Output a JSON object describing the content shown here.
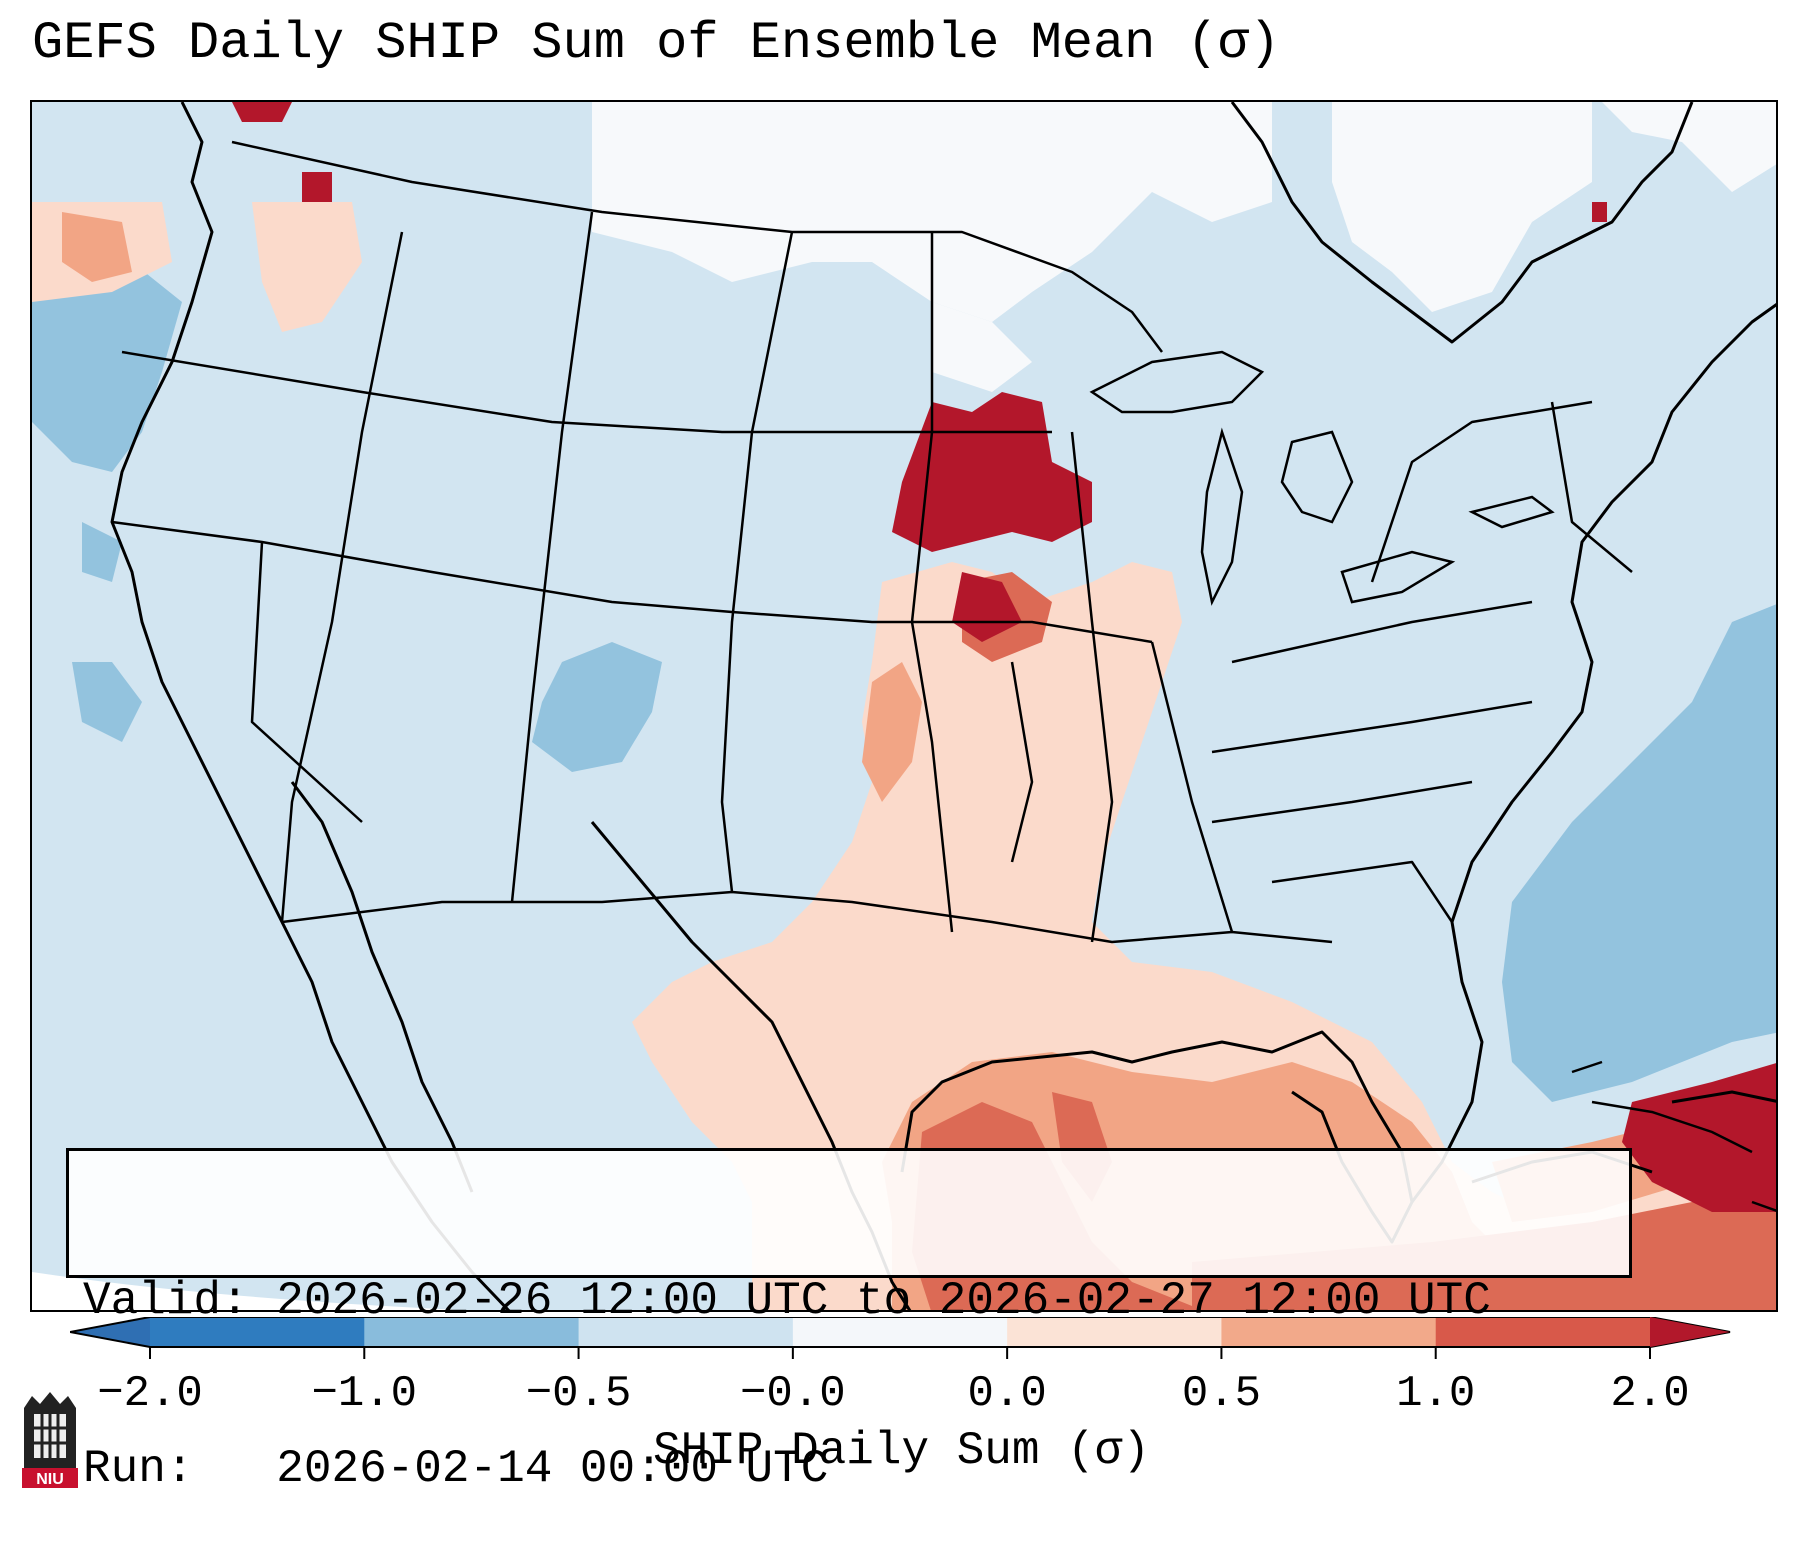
{
  "title": "GEFS Daily SHIP Sum of Ensemble Mean (σ)",
  "info": {
    "valid_label": "Valid:",
    "valid_value": "2026-02-26 12:00 UTC to 2026-02-27 12:00 UTC",
    "run_label": "Run:",
    "run_value": "2026-02-14 00:00 UTC"
  },
  "colorbar": {
    "label": "SHIP Daily Sum (σ)",
    "ticks": [
      "−2.0",
      "−1.0",
      "−0.5",
      "−0.0",
      "0.0",
      "0.5",
      "1.0",
      "2.0"
    ],
    "bins": [
      {
        "color": "#2f7cbf"
      },
      {
        "color": "#89bcdc"
      },
      {
        "color": "#cfe3f0"
      },
      {
        "color": "#f4f7fa"
      },
      {
        "color": "#fbe3d6"
      },
      {
        "color": "#f2a98a"
      },
      {
        "color": "#d8594a"
      }
    ],
    "under_color": "#2f6fb3",
    "over_color": "#b2182b"
  },
  "palette": {
    "ocean": "#d0e4f1",
    "land_neg": "#d4e6f2",
    "white": "#ffffff",
    "light_red": "#fbdacb",
    "mid_red": "#f2a585",
    "red": "#dc6a55",
    "dark_red": "#b3172b",
    "blue": "#93c3de"
  },
  "logo": {
    "text": "NIU"
  }
}
